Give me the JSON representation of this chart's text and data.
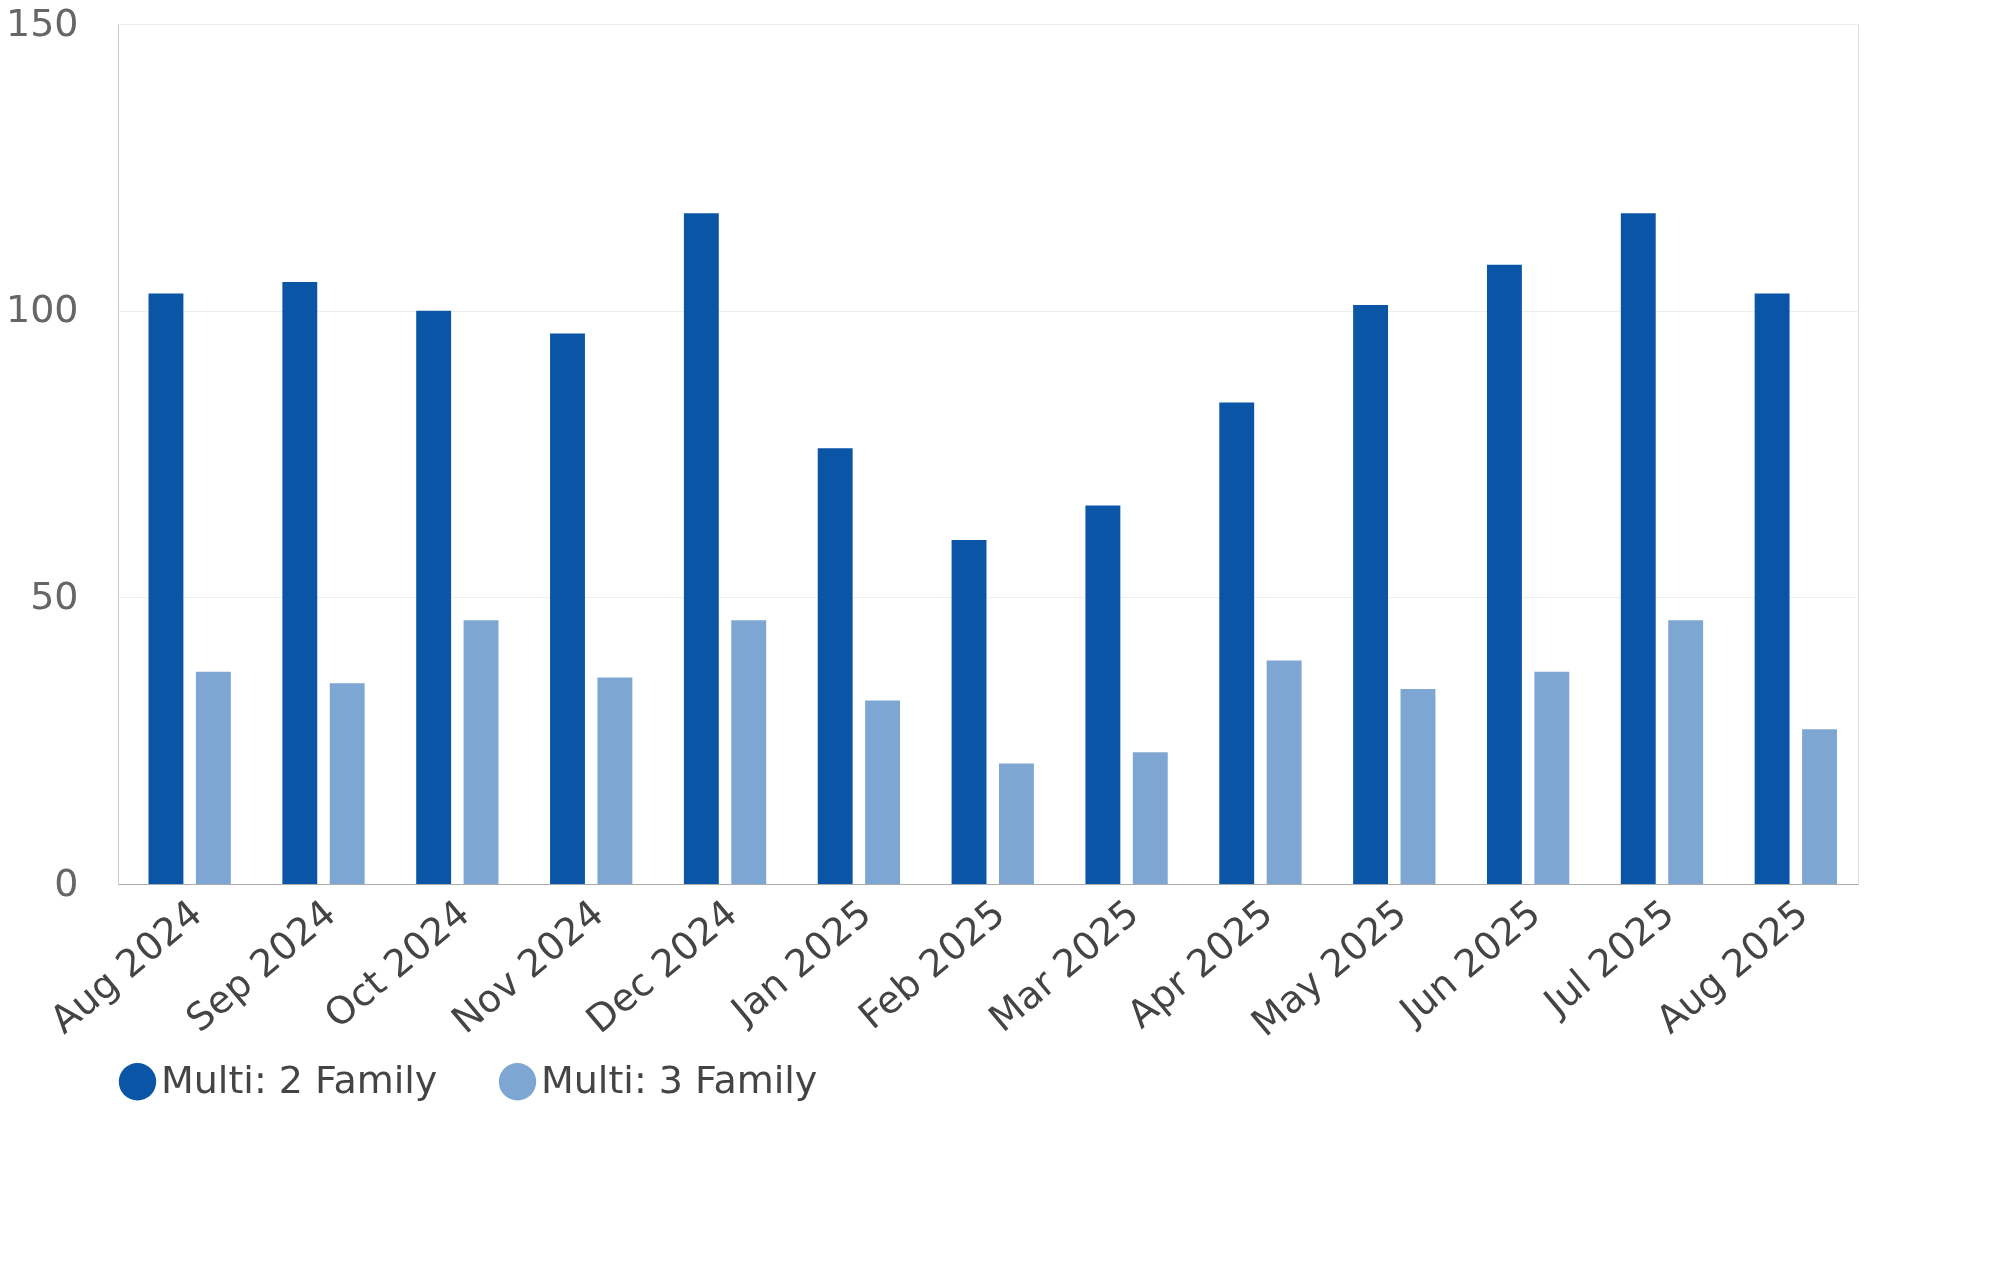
{
  "chart_data": {
    "type": "bar",
    "categories": [
      "Aug 2024",
      "Sep 2024",
      "Oct 2024",
      "Nov 2024",
      "Dec 2024",
      "Jan 2025",
      "Feb 2025",
      "Mar 2025",
      "Apr 2025",
      "May 2025",
      "Jun 2025",
      "Jul 2025",
      "Aug 2025"
    ],
    "series": [
      {
        "name": "Multi: 2 Family",
        "color": "#0a55a5",
        "values": [
          103,
          105,
          100,
          96,
          117,
          76,
          60,
          66,
          84,
          101,
          108,
          117,
          103
        ]
      },
      {
        "name": "Multi: 3 Family",
        "color": "#7ea6d3",
        "values": [
          37,
          35,
          46,
          36,
          46,
          32,
          21,
          23,
          39,
          34,
          37,
          46,
          27
        ]
      }
    ],
    "ylim": [
      0,
      150
    ],
    "yticks": [
      0,
      50,
      100,
      150
    ],
    "grid": "y",
    "legend": "bottom"
  }
}
